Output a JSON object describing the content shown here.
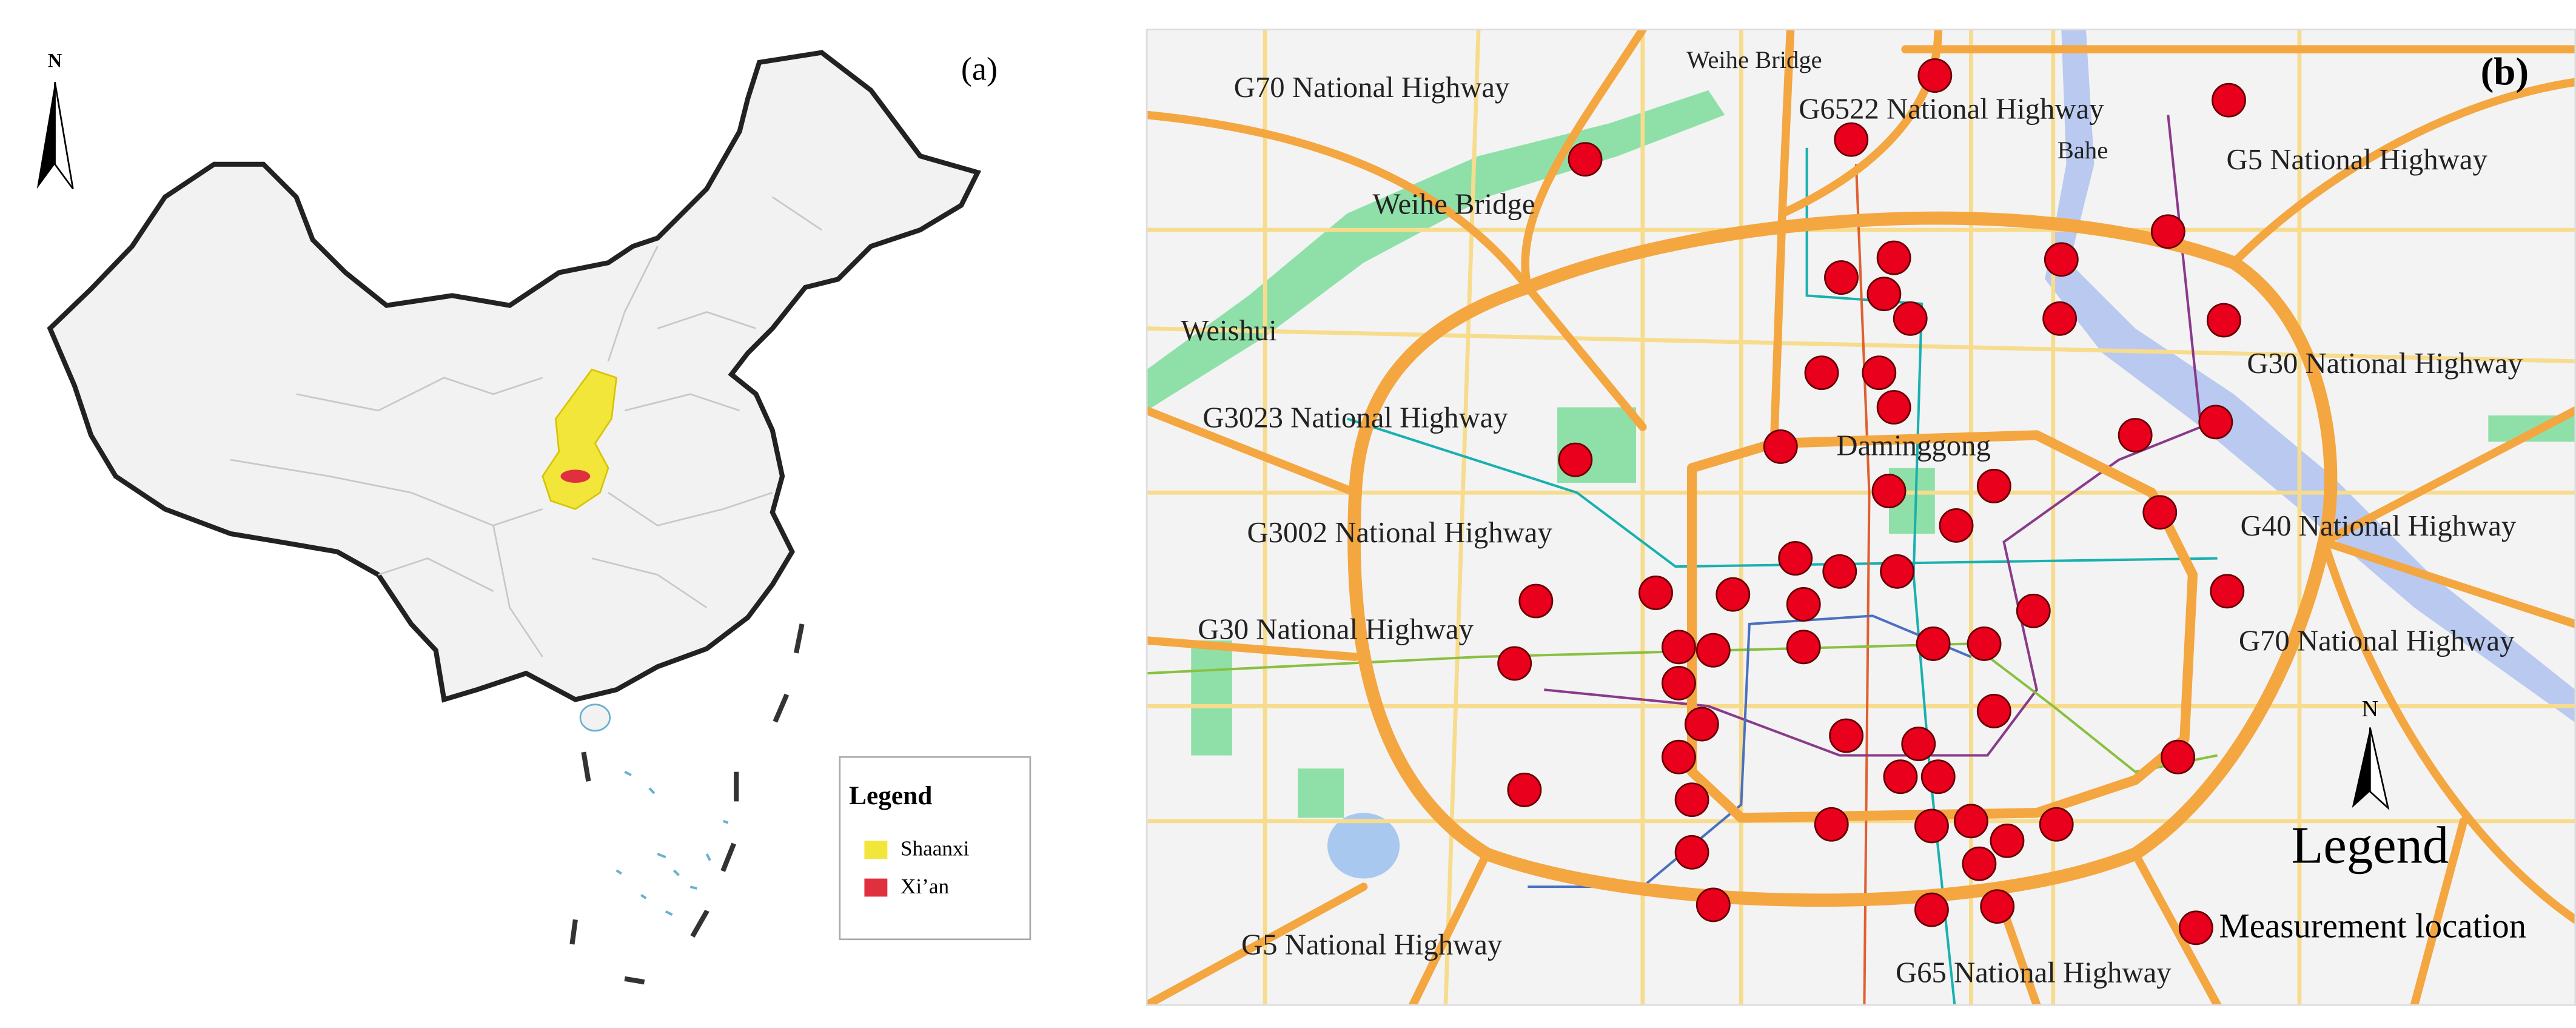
{
  "panel_a": {
    "label": "(a)",
    "north": "N",
    "legend": {
      "title": "Legend",
      "items": [
        "Shaanxi",
        "Xi’an"
      ]
    }
  },
  "panel_b": {
    "label": "(b)",
    "north": "N",
    "legend": {
      "title": "Legend",
      "item": "Measurement location"
    },
    "places": [
      "G70 National Highway",
      "Weihe Bridge",
      "G6522 National Highway",
      "Bahe",
      "G5 National Highway",
      "Weihe Bridge",
      "Weishui",
      "G30 National Highway",
      "G3023 National Highway",
      "Daminggong",
      "G3002 National Highway",
      "G40 National Highway",
      "G30 National Highway",
      "G70 National Highway",
      "G5 National Highway",
      "G65 National Highway"
    ]
  }
}
